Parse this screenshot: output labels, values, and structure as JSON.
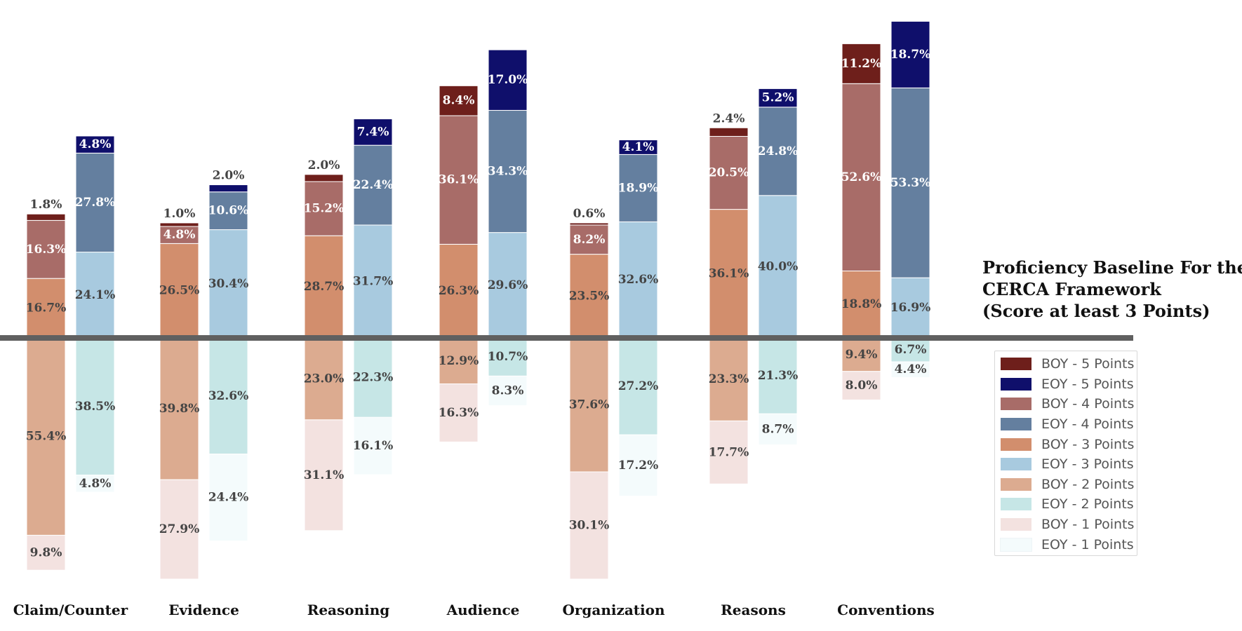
{
  "chart_data": {
    "type": "bar",
    "subtype": "diverging-stacked",
    "categories": [
      "Claim/Counter",
      "Evidence",
      "Reasoning",
      "Audience",
      "Organization",
      "Reasons",
      "Conventions"
    ],
    "baseline_title": [
      "Proficiency Baseline For the",
      "CERCA Framework",
      "(Score at least 3 Points)"
    ],
    "baseline_color": "#606060",
    "legend": [
      {
        "label": "BOY - 5 Points",
        "color": "#6e1f1b"
      },
      {
        "label": "EOY - 5 Points",
        "color": "#0f0f6b"
      },
      {
        "label": "BOY - 4 Points",
        "color": "#a86c68"
      },
      {
        "label": "EOY - 4 Points",
        "color": "#647f9f"
      },
      {
        "label": "BOY - 3 Points",
        "color": "#d28e6d"
      },
      {
        "label": "EOY - 3 Points",
        "color": "#a8cadf"
      },
      {
        "label": "BOY - 2 Points",
        "color": "#dcab90"
      },
      {
        "label": "EOY - 2 Points",
        "color": "#c6e6e6"
      },
      {
        "label": "BOY - 1 Points",
        "color": "#f3e2e0"
      },
      {
        "label": "EOY - 1 Points",
        "color": "#f4fbfc"
      }
    ],
    "series": [
      {
        "name": "BOY",
        "points": [
          {
            "p5": 1.8,
            "p4": 16.3,
            "p3": 16.7,
            "p2": 55.4,
            "p1": 9.8
          },
          {
            "p5": 1.0,
            "p4": 4.8,
            "p3": 26.5,
            "p2": 39.8,
            "p1": 27.9
          },
          {
            "p5": 2.0,
            "p4": 15.2,
            "p3": 28.7,
            "p2": 23.0,
            "p1": 31.1
          },
          {
            "p5": 8.4,
            "p4": 36.1,
            "p3": 26.3,
            "p2": 12.9,
            "p1": 16.3
          },
          {
            "p5": 0.6,
            "p4": 8.2,
            "p3": 23.5,
            "p2": 37.6,
            "p1": 30.1
          },
          {
            "p5": 2.4,
            "p4": 20.5,
            "p3": 36.1,
            "p2": 23.3,
            "p1": 17.7
          },
          {
            "p5": 11.2,
            "p4": 52.6,
            "p3": 18.8,
            "p2": 9.4,
            "p1": 8.0
          }
        ]
      },
      {
        "name": "EOY",
        "points": [
          {
            "p5": 4.8,
            "p4": 27.8,
            "p3": 24.1,
            "p2": 38.5,
            "p1": 4.8
          },
          {
            "p5": 2.0,
            "p4": 10.6,
            "p3": 30.4,
            "p2": 32.6,
            "p1": 24.4
          },
          {
            "p5": 7.4,
            "p4": 22.4,
            "p3": 31.7,
            "p2": 22.3,
            "p1": 16.1
          },
          {
            "p5": 17.0,
            "p4": 34.3,
            "p3": 29.6,
            "p2": 10.7,
            "p1": 8.3
          },
          {
            "p5": 4.1,
            "p4": 18.9,
            "p3": 32.6,
            "p2": 27.2,
            "p1": 17.2
          },
          {
            "p5": 5.2,
            "p4": 24.8,
            "p3": 40.0,
            "p2": 21.3,
            "p1": 8.7
          },
          {
            "p5": 18.7,
            "p4": 53.3,
            "p3": 16.9,
            "p2": 6.7,
            "p1": 4.4
          }
        ]
      }
    ],
    "label_color_dark": "#444444",
    "label_color_light": "#ffffff"
  }
}
